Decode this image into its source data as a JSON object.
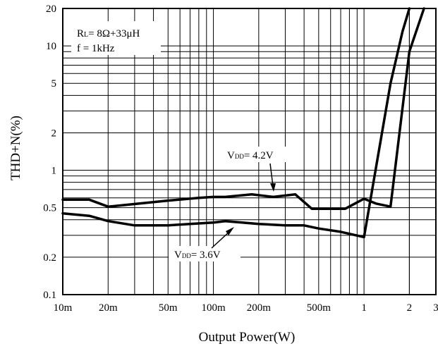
{
  "chart_data": {
    "type": "line",
    "title": "",
    "xlabel": "Output Power(W)",
    "ylabel": "THD+N(%)",
    "xscale": "log",
    "yscale": "log",
    "xlim": [
      0.01,
      3
    ],
    "ylim": [
      0.1,
      20
    ],
    "grid": true,
    "x_tick_labels": [
      {
        "value": 0.01,
        "label": "10m"
      },
      {
        "value": 0.02,
        "label": "20m"
      },
      {
        "value": 0.05,
        "label": "50m"
      },
      {
        "value": 0.1,
        "label": "100m"
      },
      {
        "value": 0.2,
        "label": "200m"
      },
      {
        "value": 0.5,
        "label": "500m"
      },
      {
        "value": 1,
        "label": "1"
      },
      {
        "value": 2,
        "label": "2"
      },
      {
        "value": 3,
        "label": "3"
      }
    ],
    "y_tick_labels": [
      {
        "value": 0.1,
        "label": "0.1"
      },
      {
        "value": 0.2,
        "label": "0.2"
      },
      {
        "value": 0.5,
        "label": "0.5"
      },
      {
        "value": 1,
        "label": "1"
      },
      {
        "value": 2,
        "label": "2"
      },
      {
        "value": 5,
        "label": "5"
      },
      {
        "value": 10,
        "label": "10"
      },
      {
        "value": 20,
        "label": "20"
      }
    ],
    "conditions": {
      "line1_main": "R",
      "line1_sub": "L",
      "line1_rest": "= 8Ω+33μH",
      "line2": "f = 1kHz"
    },
    "series": [
      {
        "label_main": "V",
        "label_sub": "DD",
        "label_rest": "= 4.2V",
        "x": [
          0.01,
          0.015,
          0.02,
          0.05,
          0.08,
          0.1,
          0.12,
          0.18,
          0.25,
          0.35,
          0.45,
          0.6,
          0.75,
          1.0,
          1.2,
          1.5,
          2.0,
          2.5
        ],
        "y": [
          0.58,
          0.58,
          0.51,
          0.57,
          0.6,
          0.61,
          0.61,
          0.64,
          0.61,
          0.64,
          0.49,
          0.49,
          0.49,
          0.59,
          0.54,
          0.51,
          9.0,
          20
        ]
      },
      {
        "label_main": "V",
        "label_sub": "DD",
        "label_rest": "= 3.6V",
        "x": [
          0.01,
          0.015,
          0.02,
          0.03,
          0.05,
          0.07,
          0.1,
          0.12,
          0.2,
          0.3,
          0.4,
          0.5,
          0.7,
          1.0,
          1.5,
          1.8,
          2.0
        ],
        "y": [
          0.45,
          0.43,
          0.39,
          0.36,
          0.36,
          0.37,
          0.38,
          0.39,
          0.37,
          0.36,
          0.36,
          0.34,
          0.32,
          0.29,
          5.0,
          13,
          20
        ]
      }
    ]
  }
}
